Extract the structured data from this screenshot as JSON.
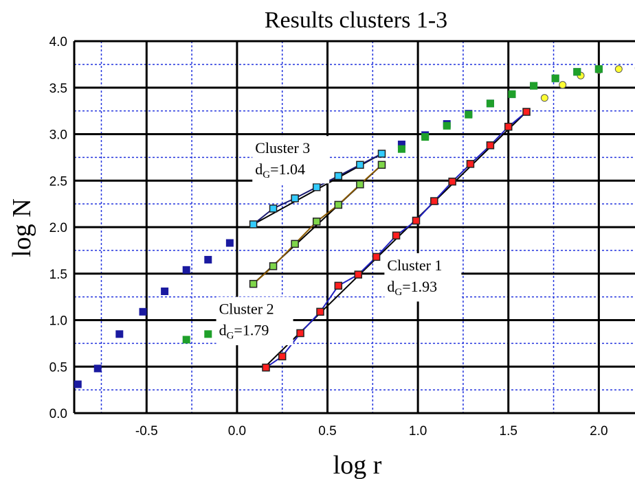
{
  "chart_data": {
    "type": "scatter",
    "title": "Results clusters 1-3",
    "xlabel": "log r",
    "ylabel": "log N",
    "xlim": [
      -0.9,
      2.2
    ],
    "ylim": [
      0.0,
      4.0
    ],
    "x_ticks": [
      {
        "value": -0.5,
        "label": "-0.5"
      },
      {
        "value": 0.0,
        "label": "0.0"
      },
      {
        "value": 0.5,
        "label": "0.5"
      },
      {
        "value": 1.0,
        "label": "1.0"
      },
      {
        "value": 1.5,
        "label": "1.5"
      },
      {
        "value": 2.0,
        "label": "2.0"
      }
    ],
    "y_ticks": [
      {
        "value": 0.0,
        "label": "0.0"
      },
      {
        "value": 0.5,
        "label": "0.5"
      },
      {
        "value": 1.0,
        "label": "1.0"
      },
      {
        "value": 1.5,
        "label": "1.5"
      },
      {
        "value": 2.0,
        "label": "2.0"
      },
      {
        "value": 2.5,
        "label": "2.5"
      },
      {
        "value": 3.0,
        "label": "3.0"
      },
      {
        "value": 3.5,
        "label": "3.5"
      },
      {
        "value": 4.0,
        "label": "4.0"
      }
    ],
    "grid": {
      "major": true,
      "minor": true
    },
    "series": [
      {
        "marker": "square",
        "color": "#1a1aa0",
        "points": [
          [
            -0.88,
            0.31
          ],
          [
            -0.77,
            0.48
          ],
          [
            -0.65,
            0.85
          ],
          [
            -0.52,
            1.09
          ],
          [
            -0.4,
            1.31
          ],
          [
            -0.28,
            1.54
          ],
          [
            -0.16,
            1.65
          ],
          [
            -0.04,
            1.83
          ],
          [
            0.91,
            2.89
          ],
          [
            1.04,
            2.99
          ],
          [
            1.16,
            3.11
          ],
          [
            1.28,
            3.22
          ],
          [
            1.4,
            3.33
          ],
          [
            1.52,
            3.43
          ],
          [
            1.64,
            3.52
          ],
          [
            1.76,
            3.6
          ],
          [
            1.88,
            3.67
          ],
          [
            2.0,
            3.7
          ]
        ]
      },
      {
        "marker": "circle",
        "color": "#ffff33",
        "points": [
          [
            1.7,
            3.39
          ],
          [
            1.8,
            3.53
          ],
          [
            1.9,
            3.63
          ],
          [
            2.0,
            3.69
          ],
          [
            2.11,
            3.7
          ],
          [
            2.22,
            3.71
          ]
        ]
      },
      {
        "marker": "square",
        "color": "#1fa02a",
        "points": [
          [
            -0.28,
            0.79
          ],
          [
            -0.16,
            0.85
          ],
          [
            0.91,
            2.84
          ],
          [
            1.04,
            2.97
          ],
          [
            1.16,
            3.09
          ],
          [
            1.28,
            3.21
          ],
          [
            1.4,
            3.33
          ],
          [
            1.52,
            3.43
          ],
          [
            1.64,
            3.52
          ],
          [
            1.76,
            3.6
          ],
          [
            1.88,
            3.67
          ],
          [
            2.0,
            3.7
          ]
        ]
      },
      {
        "name": "Cluster 1",
        "marker": "square",
        "color": "#ff1f1f",
        "line_color": "#2020c0",
        "points": [
          [
            0.16,
            0.49
          ],
          [
            0.25,
            0.61
          ],
          [
            0.35,
            0.86
          ],
          [
            0.46,
            1.09
          ],
          [
            0.56,
            1.37
          ],
          [
            0.67,
            1.49
          ],
          [
            0.77,
            1.68
          ],
          [
            0.88,
            1.91
          ],
          [
            0.99,
            2.07
          ],
          [
            1.09,
            2.28
          ],
          [
            1.19,
            2.49
          ],
          [
            1.29,
            2.68
          ],
          [
            1.4,
            2.88
          ],
          [
            1.5,
            3.08
          ],
          [
            1.6,
            3.24
          ]
        ],
        "fit": [
          [
            0.14,
            0.47
          ],
          [
            1.61,
            3.26
          ]
        ]
      },
      {
        "name": "Cluster 2",
        "marker": "square",
        "color": "#7fd64a",
        "line_color": "#8a5a00",
        "points": [
          [
            0.09,
            1.39
          ],
          [
            0.2,
            1.58
          ],
          [
            0.32,
            1.82
          ],
          [
            0.44,
            2.06
          ],
          [
            0.56,
            2.24
          ],
          [
            0.68,
            2.46
          ],
          [
            0.8,
            2.67
          ]
        ],
        "fit": [
          [
            0.09,
            1.39
          ],
          [
            0.8,
            2.67
          ]
        ]
      },
      {
        "name": "Cluster 3",
        "marker": "square",
        "color": "#33ccff",
        "line_color": "#1a1a70",
        "points": [
          [
            0.09,
            2.03
          ],
          [
            0.2,
            2.2
          ],
          [
            0.32,
            2.31
          ],
          [
            0.44,
            2.43
          ],
          [
            0.56,
            2.55
          ],
          [
            0.68,
            2.67
          ],
          [
            0.8,
            2.79
          ]
        ],
        "fit": [
          [
            0.09,
            2.03
          ],
          [
            0.8,
            2.79
          ]
        ]
      }
    ],
    "annotations": [
      {
        "name": "Cluster 3",
        "line1": "Cluster 3",
        "d_main": "d",
        "d_sub": "G",
        "d_value": "=1.04",
        "x": 0.1,
        "y_top": 2.98,
        "y_bottom": 2.47
      },
      {
        "name": "Cluster 2",
        "line1": "Cluster 2",
        "d_main": "d",
        "d_sub": "G",
        "d_value": "=1.79",
        "x": -0.1,
        "y_top": 1.25,
        "y_bottom": 0.73
      },
      {
        "name": "Cluster 1",
        "line1": "Cluster 1",
        "d_main": "d",
        "d_sub": "G",
        "d_value": "=1.93",
        "x": 0.83,
        "y_top": 1.72,
        "y_bottom": 1.2
      }
    ]
  }
}
